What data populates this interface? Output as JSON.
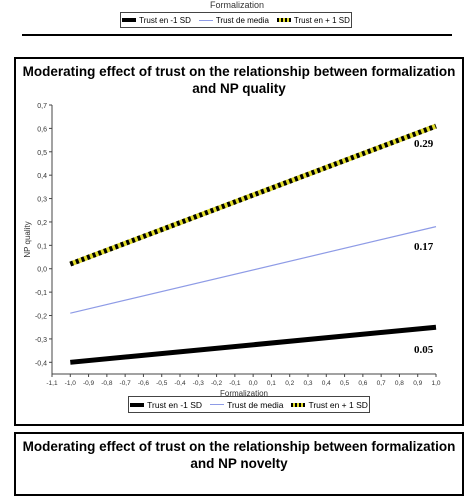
{
  "top_fragment": {
    "xlabel": "Formalization",
    "legend": [
      "Trust en -1 SD",
      "Trust de media",
      "Trust en + 1 SD"
    ]
  },
  "chart_data": {
    "type": "line",
    "title": "Moderating effect of trust on the relationship between formalization and NP quality",
    "xlabel": "Formalization",
    "ylabel": "NP quality",
    "xlim": [
      -1.1,
      1.0
    ],
    "ylim": [
      -0.45,
      0.7
    ],
    "x_ticks": [
      "-1,1",
      "-1,0",
      "-0,9",
      "-0,8",
      "-0,7",
      "-0,6",
      "-0,5",
      "-0,4",
      "-0,3",
      "-0,2",
      "-0,1",
      "0,0",
      "0,1",
      "0,2",
      "0,3",
      "0,4",
      "0,5",
      "0,6",
      "0,7",
      "0,8",
      "0,9",
      "1,0"
    ],
    "y_ticks": [
      "-0,4",
      "-0,3",
      "-0,2",
      "-0,1",
      "0,0",
      "0,1",
      "0,2",
      "0,3",
      "0,4",
      "0,5",
      "0,6",
      "0,7"
    ],
    "grid": false,
    "legend_position": "bottom",
    "series": [
      {
        "name": "Trust en -1 SD",
        "x": [
          -1.0,
          1.0
        ],
        "y": [
          -0.4,
          -0.25
        ],
        "color": "#000000",
        "style": "thick"
      },
      {
        "name": "Trust de media",
        "x": [
          -1.0,
          1.0
        ],
        "y": [
          -0.19,
          0.18
        ],
        "color": "#8e9be6",
        "style": "thin"
      },
      {
        "name": "Trust en + 1 SD",
        "x": [
          -1.0,
          1.0
        ],
        "y": [
          0.02,
          0.61
        ],
        "color": "#000000",
        "style": "dashed-yellow"
      }
    ],
    "annotations": [
      {
        "text": "0.29",
        "x": 0.88,
        "y": 0.52
      },
      {
        "text": "0.17",
        "x": 0.88,
        "y": 0.08
      },
      {
        "text": "0.05",
        "x": 0.88,
        "y": -0.36
      }
    ]
  },
  "bottom_fragment": {
    "title": "Moderating effect of trust on the relationship between formalization and NP novelty"
  }
}
